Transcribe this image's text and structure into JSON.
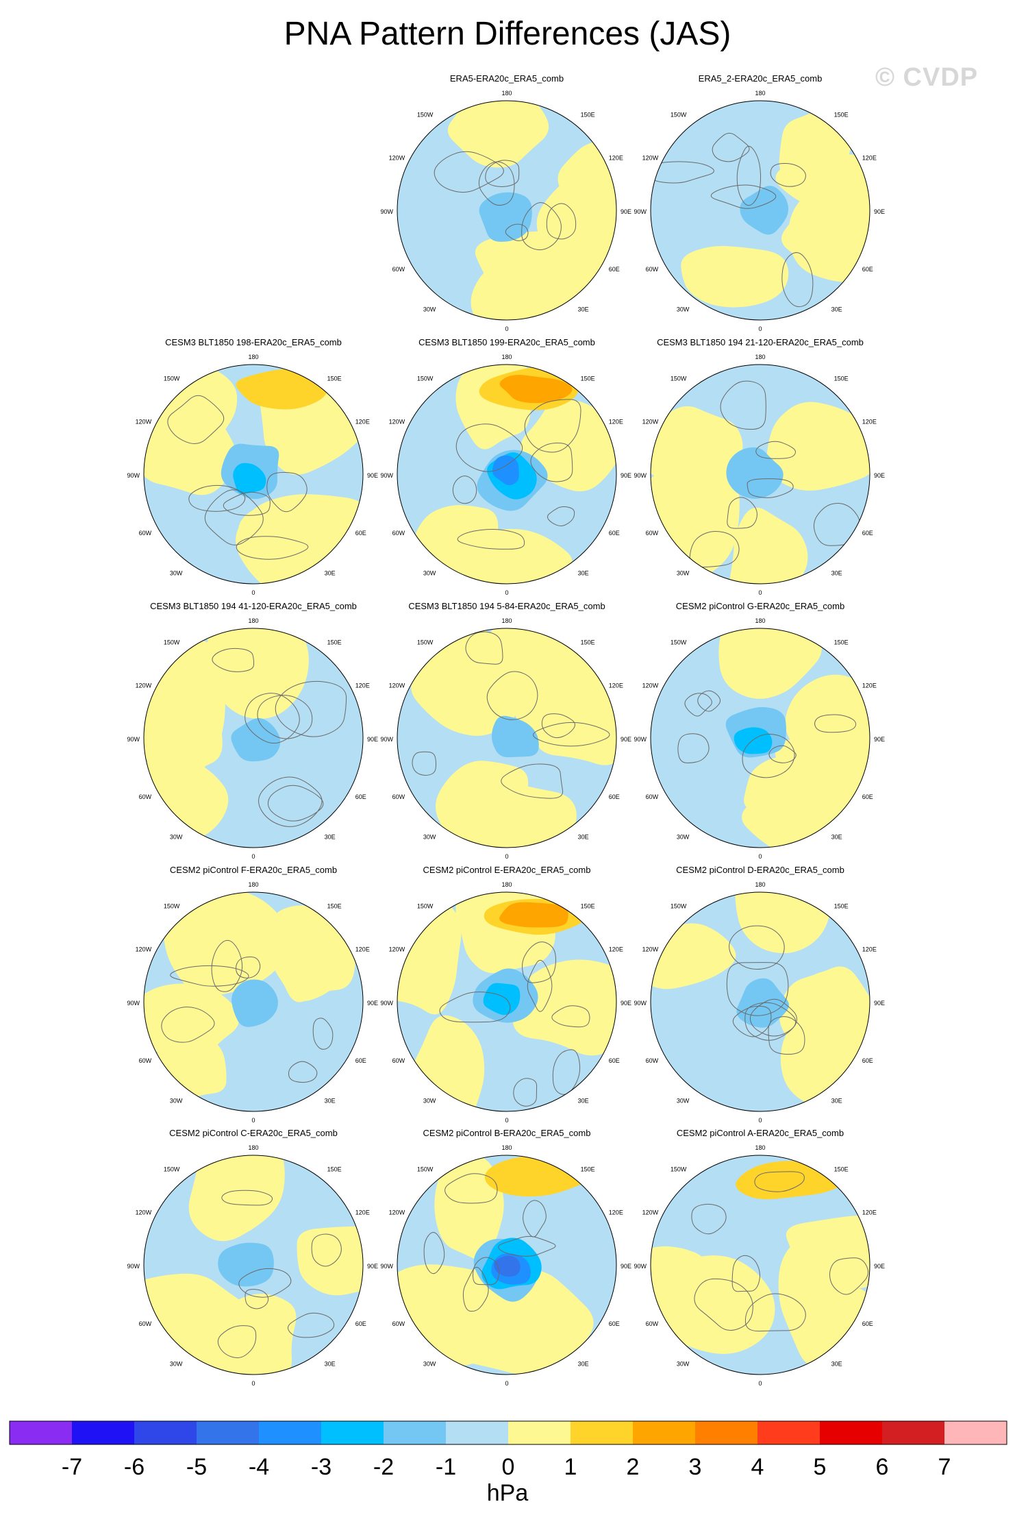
{
  "title": "PNA Pattern Differences (JAS)",
  "watermark": "© CVDP",
  "lon_labels": {
    "top": "180",
    "bottom": "0",
    "upper_left": "150W",
    "upper_right": "150E",
    "left_high": "120W",
    "right_high": "120E",
    "left_mid": "90W",
    "right_mid": "90E",
    "left_low": "60W",
    "right_low": "60E",
    "lower_left": "30W",
    "lower_right": "30E"
  },
  "panels": [
    {
      "title": "ERA5-ERA20c_ERA5_comb",
      "row": 0,
      "col": 1,
      "min_level": -2,
      "max_level": 1
    },
    {
      "title": "ERA5_2-ERA20c_ERA5_comb",
      "row": 0,
      "col": 2,
      "min_level": -2,
      "max_level": 1
    },
    {
      "title": "CESM3 BLT1850 198-ERA20c_ERA5_comb",
      "row": 1,
      "col": 0,
      "min_level": -3,
      "max_level": 2
    },
    {
      "title": "CESM3 BLT1850 199-ERA20c_ERA5_comb",
      "row": 1,
      "col": 1,
      "min_level": -4,
      "max_level": 3
    },
    {
      "title": "CESM3 BLT1850 194 21-120-ERA20c_ERA5_comb",
      "row": 1,
      "col": 2,
      "min_level": -2,
      "max_level": 1
    },
    {
      "title": "CESM3 BLT1850 194 41-120-ERA20c_ERA5_comb",
      "row": 2,
      "col": 0,
      "min_level": -2,
      "max_level": 1
    },
    {
      "title": "CESM3 BLT1850 194 5-84-ERA20c_ERA5_comb",
      "row": 2,
      "col": 1,
      "min_level": -2,
      "max_level": 1
    },
    {
      "title": "CESM2 piControl G-ERA20c_ERA5_comb",
      "row": 2,
      "col": 2,
      "min_level": -3,
      "max_level": 1
    },
    {
      "title": "CESM2 piControl F-ERA20c_ERA5_comb",
      "row": 3,
      "col": 0,
      "min_level": -2,
      "max_level": 1
    },
    {
      "title": "CESM2 piControl E-ERA20c_ERA5_comb",
      "row": 3,
      "col": 1,
      "min_level": -3,
      "max_level": 3
    },
    {
      "title": "CESM2 piControl D-ERA20c_ERA5_comb",
      "row": 3,
      "col": 2,
      "min_level": -2,
      "max_level": 1
    },
    {
      "title": "CESM2 piControl C-ERA20c_ERA5_comb",
      "row": 4,
      "col": 0,
      "min_level": -2,
      "max_level": 1
    },
    {
      "title": "CESM2 piControl B-ERA20c_ERA5_comb",
      "row": 4,
      "col": 1,
      "min_level": -5,
      "max_level": 2
    },
    {
      "title": "CESM2 piControl A-ERA20c_ERA5_comb",
      "row": 4,
      "col": 2,
      "min_level": -1,
      "max_level": 2
    }
  ],
  "colorbar": {
    "colors": [
      "#8a2cf2",
      "#1f12f5",
      "#2f47e8",
      "#3474ea",
      "#1e90ff",
      "#00bfff",
      "#73c7f2",
      "#b4def3",
      "#fef893",
      "#ffd42a",
      "#ffa500",
      "#ff7f00",
      "#ff3c1c",
      "#e60000",
      "#d41f22",
      "#ffb6b8"
    ],
    "labels": [
      "-7",
      "-6",
      "-5",
      "-4",
      "-3",
      "-2",
      "-1",
      "0",
      "1",
      "2",
      "3",
      "4",
      "5",
      "6",
      "7"
    ],
    "units": "hPa"
  }
}
